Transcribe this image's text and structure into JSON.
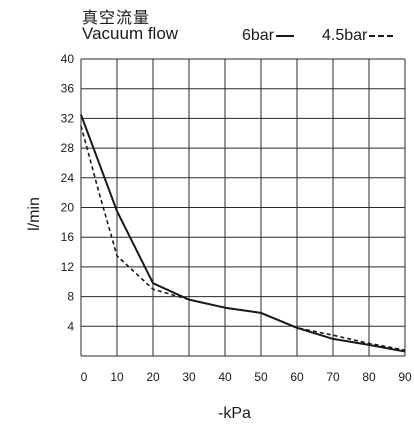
{
  "chart_data": {
    "type": "line",
    "title": "真空流量",
    "subtitle": "Vacuum flow",
    "xlabel": "-kPa",
    "ylabel": "l/min",
    "xlim": [
      0,
      90
    ],
    "ylim": [
      0,
      40
    ],
    "x_ticks": [
      0,
      10,
      20,
      30,
      40,
      50,
      60,
      70,
      80,
      90
    ],
    "y_ticks": [
      4,
      8,
      12,
      16,
      20,
      24,
      28,
      32,
      36,
      40
    ],
    "grid": true,
    "legend_placement": "top-right",
    "series": [
      {
        "name": "6bar",
        "style": "solid",
        "color": "#1a1a1a",
        "points": [
          [
            0,
            32.5
          ],
          [
            5,
            26
          ],
          [
            10,
            19.5
          ],
          [
            20,
            9.8
          ],
          [
            30,
            7.6
          ],
          [
            40,
            6.5
          ],
          [
            50,
            5.8
          ],
          [
            60,
            3.8
          ],
          [
            70,
            2.3
          ],
          [
            80,
            1.5
          ],
          [
            90,
            0.6
          ]
        ]
      },
      {
        "name": "4.5bar",
        "style": "dashed",
        "color": "#1a1a1a",
        "points": [
          [
            0,
            31
          ],
          [
            5,
            22
          ],
          [
            10,
            13.5
          ],
          [
            20,
            9
          ],
          [
            30,
            7.6
          ],
          [
            40,
            6.5
          ],
          [
            50,
            5.8
          ],
          [
            60,
            3.8
          ],
          [
            70,
            2.8
          ],
          [
            80,
            1.7
          ],
          [
            90,
            0.8
          ]
        ]
      }
    ]
  }
}
